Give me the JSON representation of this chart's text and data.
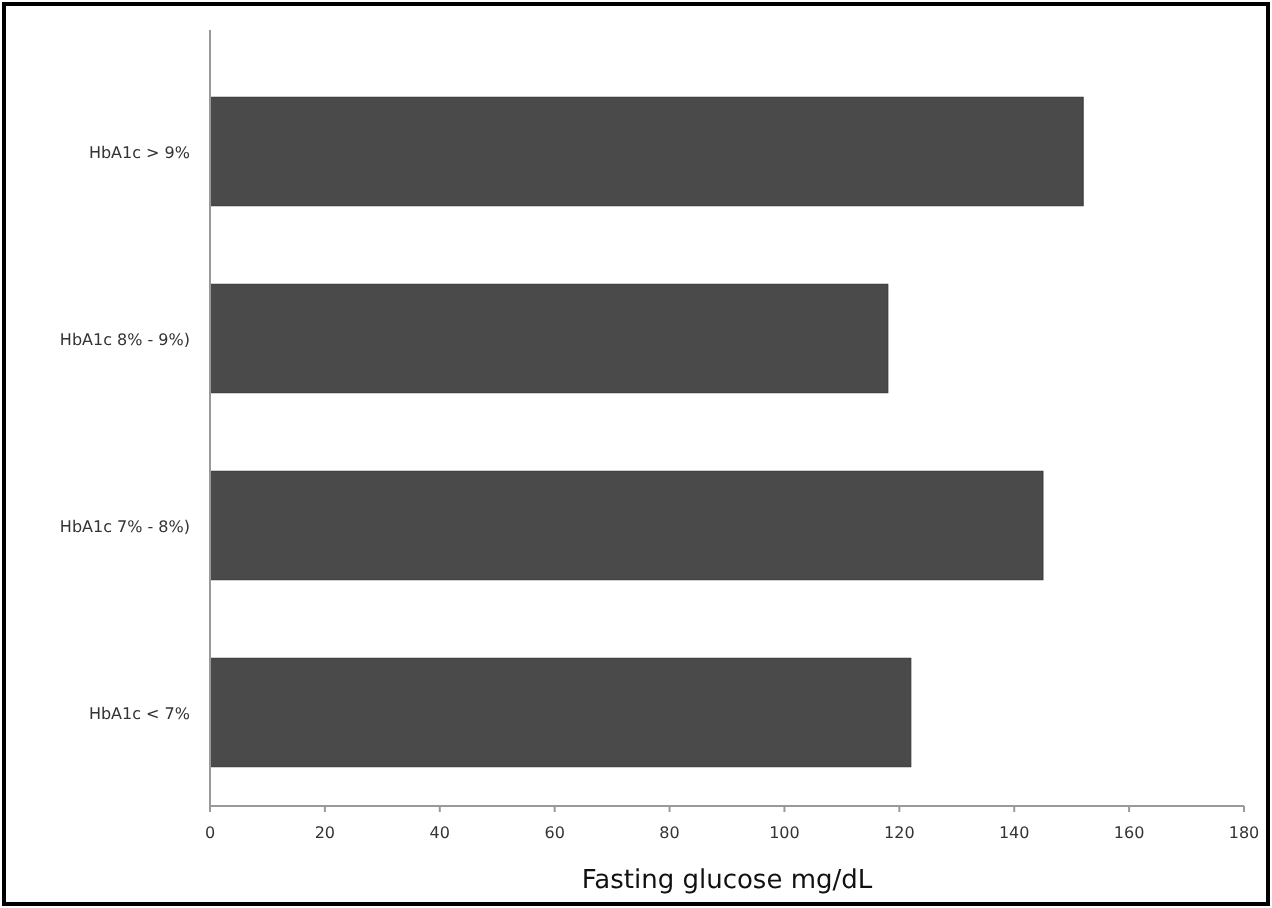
{
  "chart_data": {
    "type": "bar",
    "orientation": "horizontal",
    "xlabel": "Fasting glucose mg/dL",
    "categories": [
      "HbA1c > 9%",
      "HbA1c 8% - 9%)",
      "HbA1c 7% - 8%)",
      "HbA1c < 7%"
    ],
    "values": [
      152,
      118,
      145,
      122
    ],
    "color": "#4a4a4a",
    "xlim": [
      0,
      180
    ],
    "xticks": [
      0,
      20,
      40,
      60,
      80,
      100,
      120,
      140,
      160,
      180
    ],
    "grid": false
  }
}
